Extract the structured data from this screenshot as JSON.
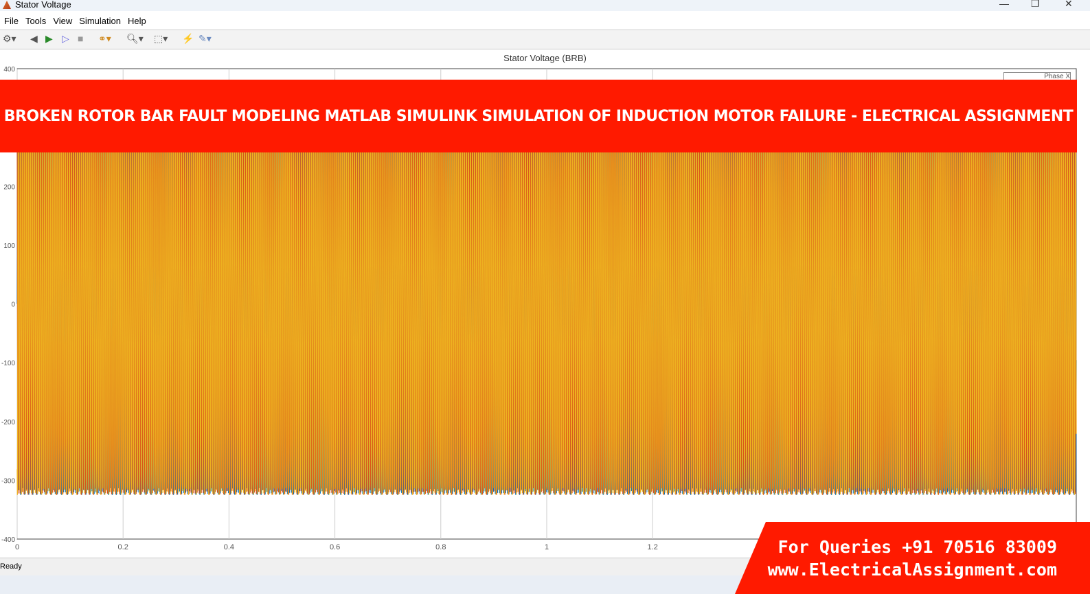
{
  "window": {
    "title": "Stator Voltage",
    "minimize": "—",
    "restore": "❐",
    "close": "✕"
  },
  "menu": [
    "File",
    "Tools",
    "View",
    "Simulation",
    "Help"
  ],
  "toolbar": {
    "icons": [
      "gear-icon",
      "step-back-icon",
      "run-icon",
      "step-forward-icon",
      "stop-icon",
      "signal-hierarchy-icon",
      "zoom-icon",
      "autoscale-icon",
      "triggers-icon",
      "cursor-measure-icon"
    ]
  },
  "status": "Ready",
  "banner": "Broken Rotor Bar Fault Modeling MATLAB Simulink Simulation of Induction Motor Failure - Electrical Assignment",
  "promo": {
    "line1": "For Queries +91 70516 83009",
    "line2": "www.ElectricalAssignment.com"
  },
  "chart_data": {
    "type": "line",
    "title": "Stator Voltage (BRB)",
    "xlim": [
      0,
      2
    ],
    "ylim": [
      -400,
      400
    ],
    "xticks": [
      "0",
      "0.2",
      "0.4",
      "0.6",
      "0.8",
      "1",
      "1.2"
    ],
    "yticks": [
      "400",
      "200",
      "100",
      "0",
      "-100",
      "-200",
      "-300",
      "-400"
    ],
    "grid": true,
    "legend": {
      "placement": "top-right",
      "entries": [
        "Phase X"
      ]
    },
    "series": [
      {
        "name": "Phase X",
        "color": "#0072BD",
        "amplitude": 325
      },
      {
        "color": "#D95319",
        "amplitude": 325
      },
      {
        "color": "#EDB120",
        "amplitude": 325
      }
    ]
  }
}
